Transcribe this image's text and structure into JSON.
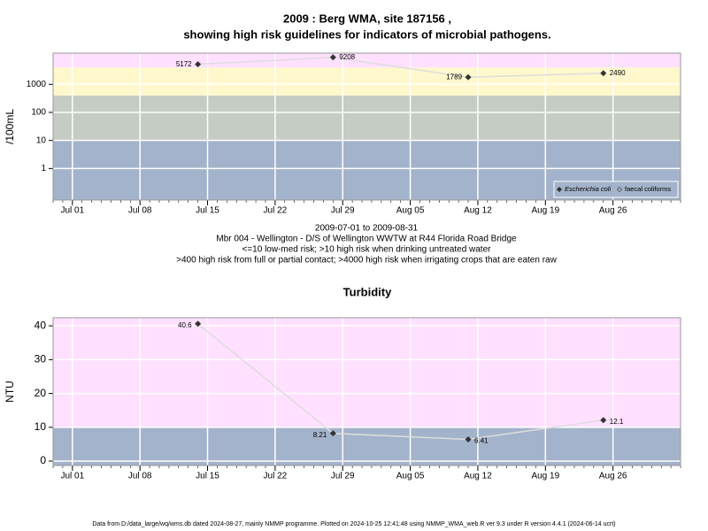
{
  "chart_data": [
    {
      "type": "line",
      "title": [
        "2009 : Berg WMA, site 187156 ,",
        "showing high risk guidelines for indicators of microbial pathogens."
      ],
      "y_label": "/100mL",
      "y_scale": "log",
      "ylim": [
        0.075,
        13000
      ],
      "yticks": [
        1,
        10,
        100,
        1000
      ],
      "xlim": [
        "2009-06-29",
        "2009-09-02"
      ],
      "xticks": [
        {
          "value": "2009-07-01",
          "label": "Jul 01"
        },
        {
          "value": "2009-07-08",
          "label": "Jul 08"
        },
        {
          "value": "2009-07-15",
          "label": "Jul 15"
        },
        {
          "value": "2009-07-22",
          "label": "Jul 22"
        },
        {
          "value": "2009-07-29",
          "label": "Jul 29"
        },
        {
          "value": "2009-08-05",
          "label": "Aug 05"
        },
        {
          "value": "2009-08-12",
          "label": "Aug 12"
        },
        {
          "value": "2009-08-19",
          "label": "Aug 19"
        },
        {
          "value": "2009-08-26",
          "label": "Aug 26"
        }
      ],
      "grid": true,
      "thresholds": [
        10,
        400,
        4000
      ],
      "band_colors": [
        "#a3b3cb",
        "#c4ccc4",
        "#fff8cc",
        "#ffe0ff"
      ],
      "x": [
        "2009-07-14",
        "2009-07-28",
        "2009-08-11",
        "2009-08-25"
      ],
      "series": [
        {
          "name": "Escherichia coli",
          "color": "#333333",
          "line_color": "#dddddd",
          "values": [
            5172,
            9208,
            1789,
            2490
          ]
        },
        {
          "name": "faecal coliforms",
          "color": "#555555",
          "line_color": "#dddddd",
          "values": [
            null,
            null,
            null,
            null
          ]
        }
      ],
      "legend": "bottom-right",
      "notes": [
        "2009-07-01 to 2009-08-31",
        "Mbr 004 - Wellington - D/S of Wellington WWTW at R44 Florida Road Bridge",
        "<=10 low-med risk; >10 high risk when drinking untreated water",
        ">400 high risk from full or partial contact; >4000 high risk when irrigating crops that are eaten raw"
      ]
    },
    {
      "type": "line",
      "title": [
        "Turbidity"
      ],
      "y_label": "NTU",
      "y_scale": "linear",
      "ylim": [
        -1.3,
        42.4
      ],
      "yticks": [
        0,
        10,
        20,
        30,
        40
      ],
      "xlim": [
        "2009-06-29",
        "2009-09-02"
      ],
      "xticks": [
        {
          "value": "2009-07-01",
          "label": "Jul 01"
        },
        {
          "value": "2009-07-08",
          "label": "Jul 08"
        },
        {
          "value": "2009-07-15",
          "label": "Jul 15"
        },
        {
          "value": "2009-07-22",
          "label": "Jul 22"
        },
        {
          "value": "2009-07-29",
          "label": "Jul 29"
        },
        {
          "value": "2009-08-05",
          "label": "Aug 05"
        },
        {
          "value": "2009-08-12",
          "label": "Aug 12"
        },
        {
          "value": "2009-08-19",
          "label": "Aug 19"
        },
        {
          "value": "2009-08-26",
          "label": "Aug 26"
        }
      ],
      "grid": true,
      "thresholds": [
        10
      ],
      "band_colors": [
        "#a3b3cb",
        "#ffe0ff"
      ],
      "x": [
        "2009-07-14",
        "2009-07-28",
        "2009-08-11",
        "2009-08-25"
      ],
      "series": [
        {
          "name": "Turbidity",
          "color": "#333333",
          "line_color": "#dddddd",
          "values": [
            40.6,
            8.21,
            6.41,
            12.1
          ]
        }
      ]
    }
  ],
  "footer": "Data from D:/data_large/wq/wms.db dated 2024-08-27, mainly NMMP programme. Plotted on 2024-10-25 12:41:48 using NMMP_WMA_web.R ver 9.3 under R version 4.4.1 (2024-06-14 ucrt)"
}
